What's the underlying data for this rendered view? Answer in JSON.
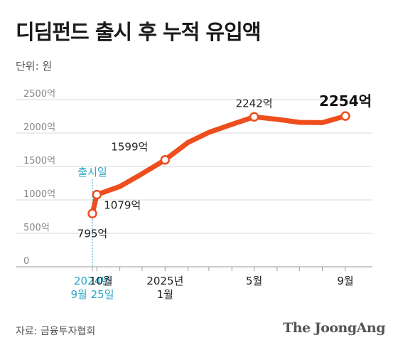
{
  "title": "디딤펀드 출시 후 누적 유입액",
  "unit_label": "단위: 원",
  "source": "자료: 금융투자협회",
  "brand": "The JoongAng",
  "colors": {
    "line": "#ee4e1e",
    "launch_marker": "#2aa6c8",
    "grid": "#d8d8d8"
  },
  "chart_data": {
    "type": "line",
    "title": "디딤펀드 출시 후 누적 유입액",
    "ylabel": "단위: 원",
    "ylim": [
      0,
      2500
    ],
    "yticks": [
      0,
      500,
      1000,
      1500,
      2000,
      2500
    ],
    "ytick_labels": [
      "0",
      "500억",
      "1000억",
      "1500억",
      "2000억",
      "2500억"
    ],
    "grid": true,
    "x_labels": [
      {
        "x": "2024-09-25",
        "lines": [
          "2024년",
          "9월 25일"
        ],
        "style": "launch"
      },
      {
        "x": "2024-10-01",
        "lines": [
          "10월"
        ]
      },
      {
        "x": "2025-01-01",
        "lines": [
          "2025년",
          "1월"
        ]
      },
      {
        "x": "2025-05-01",
        "lines": [
          "5월"
        ]
      },
      {
        "x": "2025-09-01",
        "lines": [
          "9월"
        ]
      }
    ],
    "launch_annotation": {
      "x": "2024-09-25",
      "text": "출시일"
    },
    "series": [
      {
        "points": [
          {
            "x": "2024-09-25",
            "y": 795,
            "label": "795억",
            "marker": true,
            "label_pos": "below"
          },
          {
            "x": "2024-10-01",
            "y": 1079,
            "label": "1079억",
            "marker": true,
            "label_pos": "below-right"
          },
          {
            "x": "2024-11-01",
            "y": 1200
          },
          {
            "x": "2024-12-01",
            "y": 1390
          },
          {
            "x": "2025-01-01",
            "y": 1599,
            "label": "1599억",
            "marker": true,
            "label_pos": "above-left"
          },
          {
            "x": "2025-02-01",
            "y": 1860
          },
          {
            "x": "2025-03-01",
            "y": 2010
          },
          {
            "x": "2025-04-01",
            "y": 2130
          },
          {
            "x": "2025-05-01",
            "y": 2242,
            "label": "2242억",
            "marker": true,
            "label_pos": "above"
          },
          {
            "x": "2025-06-01",
            "y": 2205
          },
          {
            "x": "2025-07-01",
            "y": 2160
          },
          {
            "x": "2025-08-01",
            "y": 2155
          },
          {
            "x": "2025-09-01",
            "y": 2254,
            "label": "2254억",
            "marker": true,
            "label_pos": "above",
            "emphasis": true
          }
        ]
      }
    ]
  }
}
